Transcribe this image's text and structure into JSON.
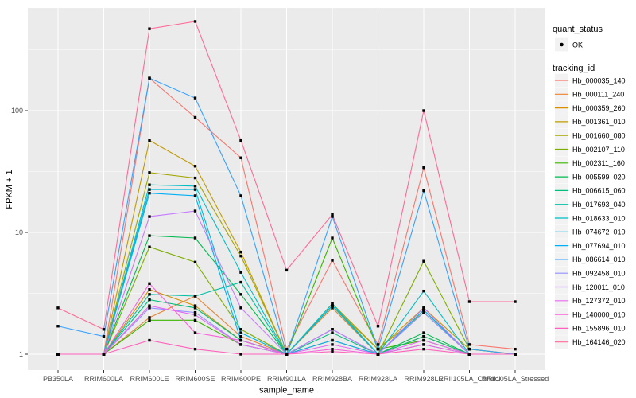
{
  "figure": {
    "background": "#FFFFFF",
    "panel_bg": "#EBEBEB",
    "grid_color": "#FFFFFF",
    "tick_color": "#333333",
    "tick_label_color": "#4D4D4D",
    "marker_color": "#000000",
    "legend_key_bg": "#F2F2F2"
  },
  "chart_data": {
    "type": "line",
    "title": "",
    "xlabel": "sample_name",
    "ylabel": "FPKM + 1",
    "yscale": "log10",
    "ytick_labels": [
      "1",
      "10",
      "100"
    ],
    "ytick_values": [
      1,
      10,
      100
    ],
    "ylim": [
      0.75,
      700
    ],
    "grid": true,
    "legend_position": "right",
    "categories": [
      "PB350LA",
      "RRIM600LA",
      "RRIM600LE",
      "RRIM600SE",
      "RRIM600PE",
      "RRIM901LA",
      "RRIM928BA",
      "RRIM928LA",
      "RRIM928LE",
      "RRII105LA_Control",
      "RRII105LA_Stressed"
    ],
    "legend": {
      "quant_status_title": "quant_status",
      "quant_status_items": [
        {
          "label": "OK",
          "marker": "point"
        }
      ],
      "tracking_id_title": "tracking_id"
    },
    "series": [
      {
        "name": "Hb_000035_140",
        "color": "#F8766D",
        "values": [
          1.0,
          1.0,
          185,
          88,
          41,
          1.1,
          5.9,
          1.2,
          34,
          1.2,
          1.1
        ]
      },
      {
        "name": "Hb_000111_240",
        "color": "#EA8331",
        "values": [
          1.0,
          1.0,
          2.0,
          3.0,
          1.4,
          1.0,
          2.4,
          1.0,
          2.3,
          1.0,
          1.0
        ]
      },
      {
        "name": "Hb_000359_260",
        "color": "#D89000",
        "values": [
          1.0,
          1.0,
          3.4,
          2.5,
          1.3,
          1.0,
          1.3,
          1.0,
          1.4,
          1.0,
          1.0
        ]
      },
      {
        "name": "Hb_001361_010",
        "color": "#C09B00",
        "values": [
          1.0,
          1.0,
          57,
          35,
          6.9,
          1.0,
          2.6,
          1.1,
          2.4,
          1.1,
          1.0
        ]
      },
      {
        "name": "Hb_001660_080",
        "color": "#A3A500",
        "values": [
          1.0,
          1.0,
          31,
          28,
          6.4,
          1.0,
          2.5,
          1.1,
          2.2,
          1.0,
          1.0
        ]
      },
      {
        "name": "Hb_002107_110",
        "color": "#7CAE00",
        "values": [
          1.0,
          1.0,
          7.6,
          5.7,
          1.6,
          1.0,
          2.5,
          1.0,
          5.8,
          1.1,
          1.0
        ]
      },
      {
        "name": "Hb_002311_160",
        "color": "#39B600",
        "values": [
          1.0,
          1.0,
          1.9,
          1.9,
          1.2,
          1.0,
          9.0,
          1.1,
          1.3,
          1.0,
          1.0
        ]
      },
      {
        "name": "Hb_005599_020",
        "color": "#00BB4E",
        "values": [
          1.0,
          1.0,
          9.4,
          9.0,
          3.1,
          1.0,
          1.6,
          1.0,
          1.5,
          1.0,
          1.0
        ]
      },
      {
        "name": "Hb_006615_060",
        "color": "#00BF7D",
        "values": [
          1.0,
          1.0,
          2.8,
          2.4,
          1.3,
          1.0,
          1.5,
          1.0,
          1.4,
          1.0,
          1.0
        ]
      },
      {
        "name": "Hb_017693_040",
        "color": "#00C1A3",
        "values": [
          1.0,
          1.0,
          3.1,
          3.0,
          3.9,
          1.0,
          2.5,
          1.0,
          2.3,
          1.0,
          1.0
        ]
      },
      {
        "name": "Hb_018633_010",
        "color": "#00BFC4",
        "values": [
          1.0,
          1.0,
          24.6,
          24.0,
          4.7,
          1.0,
          2.6,
          1.0,
          3.3,
          1.0,
          1.0
        ]
      },
      {
        "name": "Hb_074672_010",
        "color": "#00BAE0",
        "values": [
          1.0,
          1.0,
          22.5,
          22.5,
          1.5,
          1.0,
          2.5,
          1.0,
          2.3,
          1.0,
          1.0
        ]
      },
      {
        "name": "Hb_077694_010",
        "color": "#00B0F6",
        "values": [
          1.0,
          1.0,
          21.0,
          20.0,
          1.3,
          1.0,
          1.3,
          1.0,
          1.2,
          1.0,
          1.0
        ]
      },
      {
        "name": "Hb_086614_010",
        "color": "#35A2FF",
        "values": [
          1.7,
          1.4,
          185,
          127,
          20,
          1.0,
          13.5,
          1.1,
          22,
          1.1,
          1.0
        ]
      },
      {
        "name": "Hb_092458_010",
        "color": "#9590FF",
        "values": [
          1.0,
          1.0,
          2.4,
          2.2,
          1.2,
          1.0,
          1.6,
          1.0,
          2.2,
          1.0,
          1.0
        ]
      },
      {
        "name": "Hb_120011_010",
        "color": "#C77CFF",
        "values": [
          1.0,
          1.0,
          13.5,
          15.0,
          2.4,
          1.0,
          1.6,
          1.0,
          2.4,
          1.0,
          1.0
        ]
      },
      {
        "name": "Hb_127372_010",
        "color": "#E76BF3",
        "values": [
          1.0,
          1.0,
          2.5,
          2.1,
          1.2,
          1.0,
          1.2,
          1.0,
          1.3,
          1.0,
          1.0
        ]
      },
      {
        "name": "Hb_140000_010",
        "color": "#FA62DB",
        "values": [
          1.0,
          1.0,
          3.8,
          1.5,
          1.3,
          1.0,
          1.1,
          1.0,
          1.2,
          1.0,
          1.0
        ]
      },
      {
        "name": "Hb_155896_010",
        "color": "#FF62BC",
        "values": [
          1.0,
          1.0,
          1.3,
          1.1,
          1.0,
          1.0,
          1.05,
          1.0,
          1.1,
          1.0,
          1.0
        ]
      },
      {
        "name": "Hb_164146_020",
        "color": "#FF6A98",
        "values": [
          2.4,
          1.6,
          470,
          540,
          57,
          4.9,
          14,
          1.7,
          100,
          2.7,
          2.7
        ]
      }
    ]
  }
}
